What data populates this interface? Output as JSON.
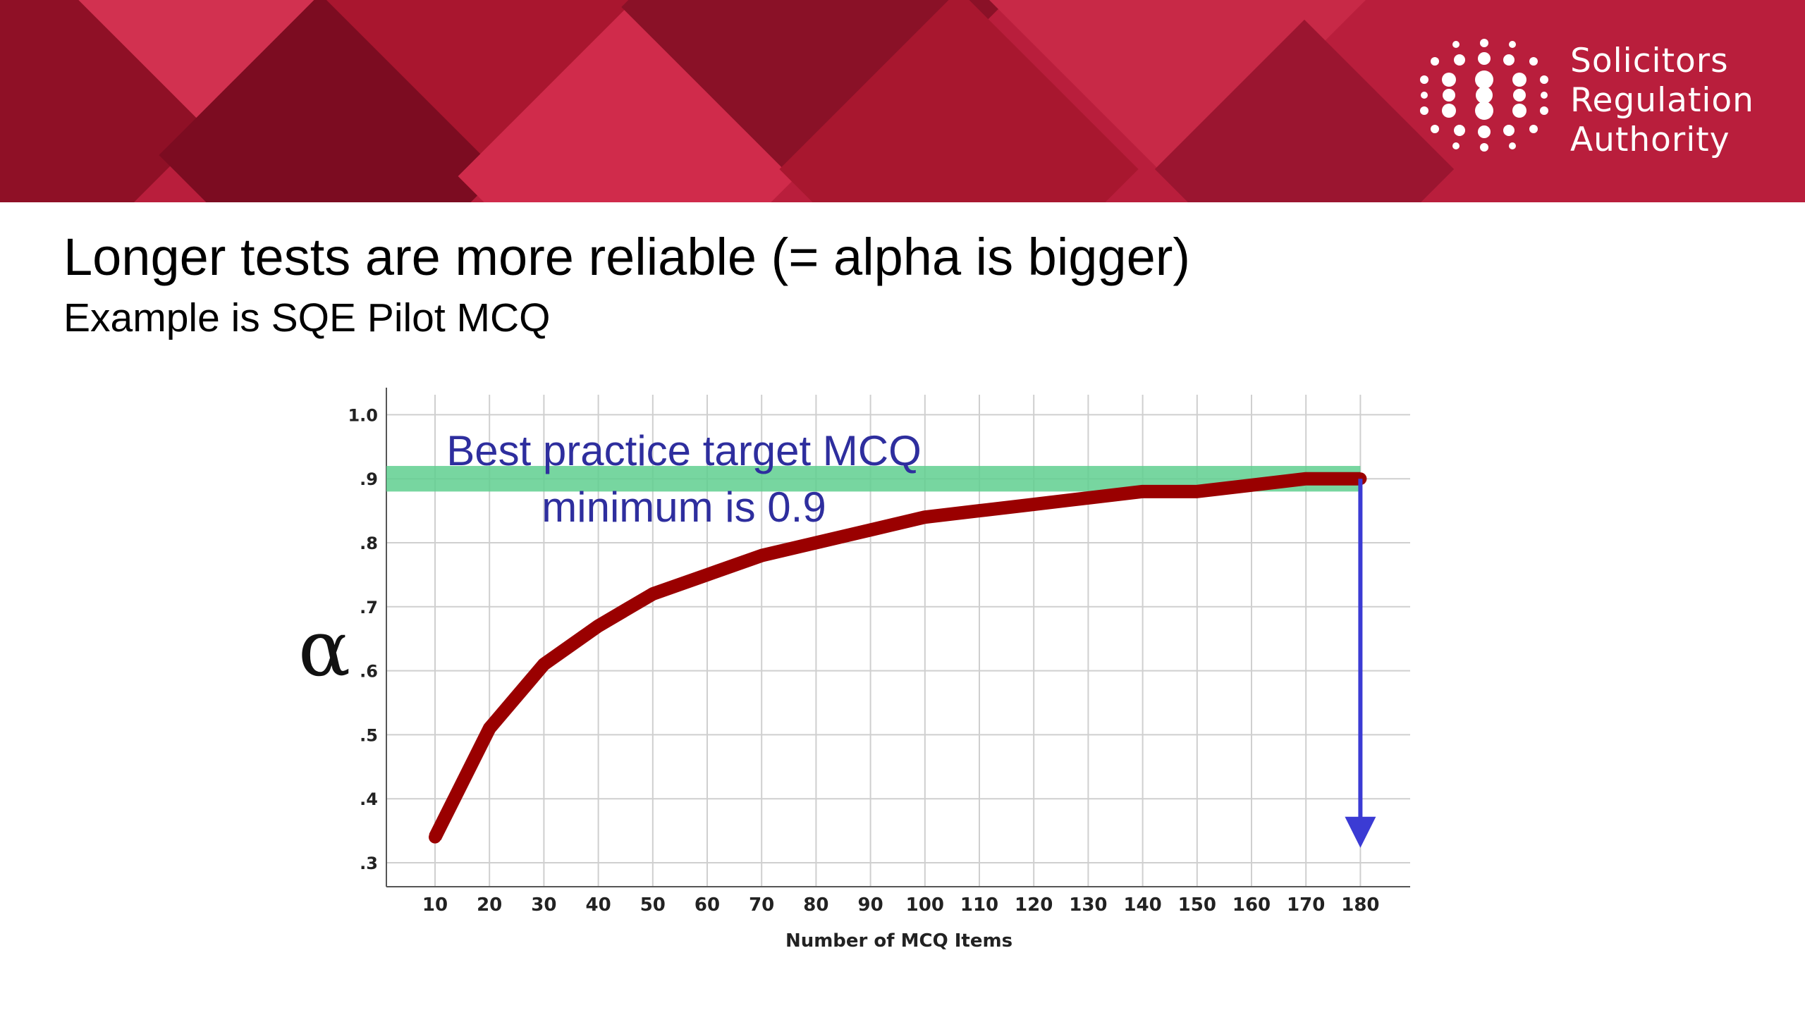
{
  "slide": {
    "title": "Longer tests are more reliable (= alpha is bigger)",
    "subtitle": "Example is SQE Pilot MCQ"
  },
  "brand": {
    "line1": "Solicitors",
    "line2": "Regulation",
    "line3": "Authority",
    "icon": "dot-grid-logo-icon"
  },
  "colors": {
    "banner": "#b91e3c",
    "curve": "#9a0000",
    "target_band": "#5fcf8f",
    "annotation_text": "#2e2e9e",
    "arrow": "#3b3bd4"
  },
  "chart_data": {
    "type": "line",
    "xlabel": "Number of MCQ Items",
    "ylabel": "α",
    "x": [
      10,
      20,
      30,
      40,
      50,
      60,
      70,
      80,
      90,
      100,
      110,
      120,
      130,
      140,
      150,
      160,
      170,
      180
    ],
    "xticks": [
      "10",
      "20",
      "30",
      "40",
      "50",
      "60",
      "70",
      "80",
      "90",
      "100",
      "110",
      "120",
      "130",
      "140",
      "150",
      "160",
      "170",
      "180"
    ],
    "yticks": [
      "1.0",
      ".9",
      ".8",
      ".7",
      ".6",
      ".5",
      ".4",
      ".3"
    ],
    "ytick_values": [
      1.0,
      0.9,
      0.8,
      0.7,
      0.6,
      0.5,
      0.4,
      0.3
    ],
    "series": [
      {
        "values": [
          0.34,
          0.51,
          0.61,
          0.67,
          0.72,
          0.75,
          0.78,
          0.8,
          0.82,
          0.84,
          0.85,
          0.86,
          0.87,
          0.88,
          0.88,
          0.89,
          0.9,
          0.9
        ]
      }
    ],
    "xlim": [
      1,
      190
    ],
    "ylim": [
      0.26,
      1.02
    ],
    "grid": true,
    "target_band": {
      "y_from": 0.88,
      "y_to": 0.92,
      "x_from": 1,
      "x_to": 180
    },
    "annotations": {
      "line1": "Best practice target MCQ",
      "line2": "minimum is 0.9"
    },
    "arrow": {
      "x": 180,
      "y_from": 0.9,
      "y_to": 0.33
    }
  }
}
